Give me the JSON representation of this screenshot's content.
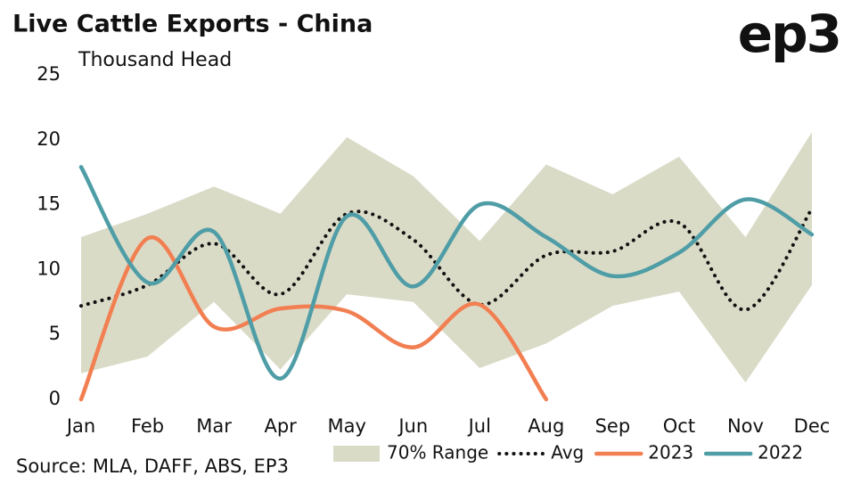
{
  "chart_data": {
    "type": "line",
    "title": "Live Cattle Exports - China",
    "subtitle": "Thousand Head",
    "source": "Source: MLA, DAFF, ABS, EP3",
    "logo": "ep3",
    "categories": [
      "Jan",
      "Feb",
      "Mar",
      "Apr",
      "May",
      "Jun",
      "Jul",
      "Aug",
      "Sep",
      "Oct",
      "Nov",
      "Dec"
    ],
    "ylim": [
      0,
      25
    ],
    "yticks": [
      0,
      5,
      10,
      15,
      20,
      25
    ],
    "grid": false,
    "legend": "bottom",
    "range": {
      "name": "70% Range",
      "color": "#dadbc7",
      "upper": [
        12.5,
        14.3,
        16.4,
        14.3,
        20.2,
        17.2,
        12.2,
        18.1,
        15.8,
        18.7,
        12.5,
        20.6
      ],
      "lower": [
        2.0,
        3.3,
        7.5,
        2.3,
        8.1,
        7.5,
        2.4,
        4.3,
        7.2,
        8.3,
        1.3,
        8.8
      ]
    },
    "series": [
      {
        "name": "Avg",
        "color": "#111111",
        "dotted": true,
        "values": [
          7.2,
          8.8,
          12.0,
          8.1,
          14.3,
          12.3,
          7.3,
          11.1,
          11.4,
          13.6,
          6.9,
          14.7
        ]
      },
      {
        "name": "2023",
        "color": "#f27f51",
        "values": [
          0,
          12.4,
          5.6,
          7.0,
          6.8,
          4.0,
          7.3,
          0,
          null,
          null,
          null,
          null
        ]
      },
      {
        "name": "2022",
        "color": "#4f9da6",
        "values": [
          17.9,
          9.0,
          12.9,
          1.6,
          14.1,
          8.7,
          15.0,
          12.5,
          9.5,
          11.3,
          15.4,
          12.7
        ]
      }
    ]
  }
}
